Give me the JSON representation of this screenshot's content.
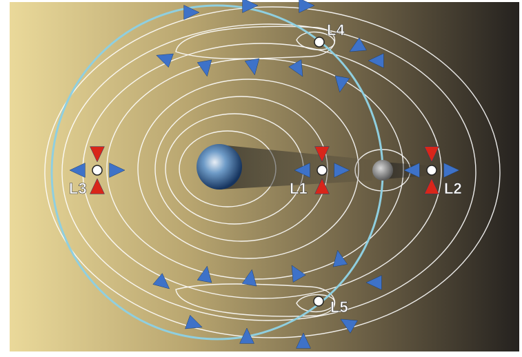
{
  "points": [
    {
      "label": "L1"
    },
    {
      "label": "L2"
    },
    {
      "label": "L3"
    },
    {
      "label": "L4"
    },
    {
      "label": "L5"
    }
  ]
}
